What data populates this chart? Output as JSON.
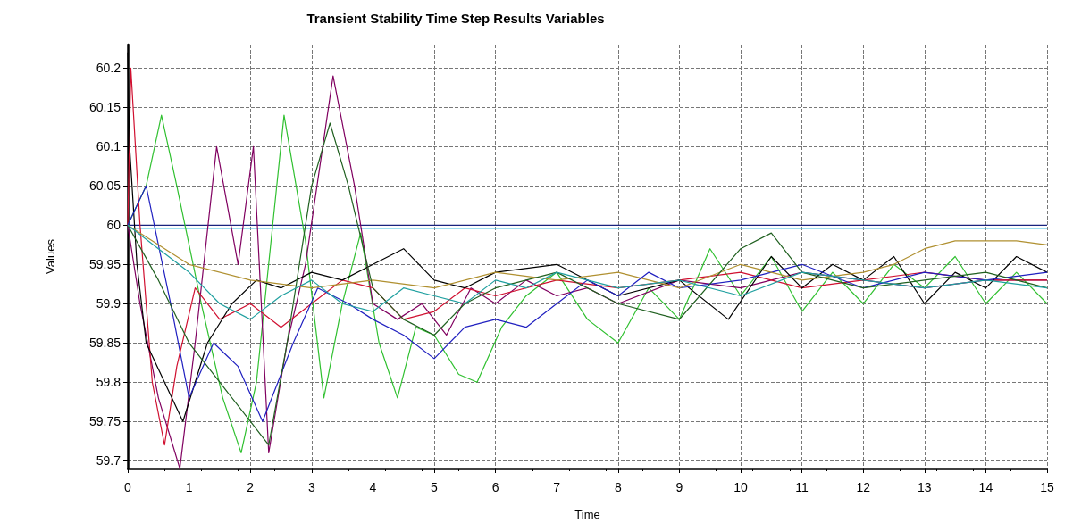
{
  "chart_data": {
    "type": "line",
    "title": "Transient Stability Time Step Results Variables",
    "xlabel": "Time",
    "ylabel": "Values",
    "xlim": [
      0,
      15
    ],
    "xticks": [
      0,
      1,
      2,
      3,
      4,
      5,
      6,
      7,
      8,
      9,
      10,
      11,
      12,
      13,
      14,
      15
    ],
    "ylim": [
      59.69,
      60.23
    ],
    "yticks": [
      59.7,
      59.75,
      59.8,
      59.85,
      59.9,
      59.95,
      60,
      60.05,
      60.1,
      60.15,
      60.2
    ],
    "grid": true,
    "marker": "none",
    "line_style": "solid",
    "series": [
      {
        "color": "#1a237e",
        "x": [
          0,
          15
        ],
        "values": [
          60,
          60
        ]
      },
      {
        "color": "#40c0e0",
        "x": [
          0,
          15
        ],
        "values": [
          59.996,
          59.996
        ]
      },
      {
        "color": "#30c030",
        "x": [
          0,
          0.3,
          0.55,
          0.8,
          1.2,
          1.55,
          1.85,
          2.1,
          2.55,
          2.9,
          3.2,
          3.5,
          3.8,
          4.1,
          4.4,
          4.7,
          5,
          5.4,
          5.7,
          6.1,
          6.5,
          7,
          7.5,
          8,
          8.5,
          9,
          9.5,
          10,
          10.5,
          11,
          11.5,
          12,
          12.5,
          13,
          13.5,
          14,
          14.5,
          15
        ],
        "values": [
          60,
          60.05,
          60.14,
          60.05,
          59.9,
          59.78,
          59.71,
          59.8,
          60.14,
          59.98,
          59.78,
          59.9,
          59.99,
          59.85,
          59.78,
          59.87,
          59.86,
          59.81,
          59.8,
          59.87,
          59.91,
          59.94,
          59.88,
          59.85,
          59.92,
          59.88,
          59.97,
          59.91,
          59.96,
          59.89,
          59.94,
          59.9,
          59.95,
          59.92,
          59.96,
          59.9,
          59.94,
          59.9
        ]
      },
      {
        "color": "#800060",
        "x": [
          0,
          0.2,
          0.5,
          0.85,
          1.1,
          1.45,
          1.8,
          2.05,
          2.3,
          2.6,
          2.9,
          3.35,
          3.7,
          4,
          4.4,
          4.8,
          5.2,
          5.6,
          6,
          6.5,
          7,
          7.5,
          8,
          9,
          10,
          11,
          12,
          13,
          14,
          15
        ],
        "values": [
          60,
          59.9,
          59.78,
          59.69,
          59.85,
          60.1,
          59.95,
          60.1,
          59.71,
          59.85,
          59.95,
          60.19,
          60.05,
          59.9,
          59.88,
          59.9,
          59.86,
          59.92,
          59.9,
          59.93,
          59.91,
          59.92,
          59.9,
          59.93,
          59.92,
          59.94,
          59.93,
          59.92,
          59.93,
          59.93
        ]
      },
      {
        "color": "#d01030",
        "x": [
          0,
          0.05,
          0.2,
          0.4,
          0.6,
          0.8,
          1.1,
          1.5,
          2,
          2.5,
          3,
          3.5,
          4,
          4.5,
          5,
          5.5,
          6,
          7,
          8,
          9,
          10,
          11,
          12,
          13,
          14,
          15
        ],
        "values": [
          60,
          60.2,
          60,
          59.8,
          59.72,
          59.82,
          59.92,
          59.88,
          59.9,
          59.87,
          59.9,
          59.93,
          59.92,
          59.88,
          59.89,
          59.92,
          59.91,
          59.93,
          59.92,
          59.93,
          59.94,
          59.92,
          59.93,
          59.94,
          59.93,
          59.93
        ]
      },
      {
        "color": "#000000",
        "x": [
          0,
          0.03,
          0.15,
          0.3,
          0.6,
          0.9,
          1.3,
          1.7,
          2.1,
          2.5,
          3,
          3.5,
          4,
          4.5,
          5,
          5.5,
          6,
          7,
          8,
          9,
          9.8,
          10.5,
          11,
          11.5,
          12,
          12.5,
          13,
          13.5,
          14,
          14.5,
          15
        ],
        "values": [
          60.22,
          60.1,
          59.95,
          59.85,
          59.8,
          59.75,
          59.85,
          59.9,
          59.93,
          59.92,
          59.94,
          59.93,
          59.95,
          59.97,
          59.93,
          59.92,
          59.94,
          59.95,
          59.91,
          59.93,
          59.88,
          59.96,
          59.92,
          59.95,
          59.93,
          59.96,
          59.9,
          59.94,
          59.92,
          59.96,
          59.94
        ]
      },
      {
        "color": "#2020c0",
        "x": [
          0,
          0.3,
          0.7,
          1,
          1.4,
          1.8,
          2.2,
          2.7,
          3.1,
          3.6,
          4,
          4.5,
          5,
          5.5,
          6,
          6.5,
          7,
          7.5,
          8,
          8.5,
          9,
          10,
          11,
          12,
          13,
          14,
          15
        ],
        "values": [
          60,
          60.05,
          59.9,
          59.78,
          59.85,
          59.82,
          59.75,
          59.85,
          59.92,
          59.9,
          59.88,
          59.86,
          59.83,
          59.87,
          59.88,
          59.87,
          59.9,
          59.93,
          59.91,
          59.94,
          59.92,
          59.93,
          59.95,
          59.92,
          59.94,
          59.93,
          59.94
        ]
      },
      {
        "color": "#b09030",
        "x": [
          0,
          1,
          2,
          3,
          4,
          5,
          6,
          7,
          8,
          9,
          10,
          11,
          12,
          12.5,
          13,
          13.5,
          14,
          14.5,
          15
        ],
        "values": [
          60,
          59.95,
          59.93,
          59.92,
          59.93,
          59.92,
          59.94,
          59.93,
          59.94,
          59.92,
          59.95,
          59.93,
          59.94,
          59.95,
          59.97,
          59.98,
          59.98,
          59.98,
          59.975
        ]
      },
      {
        "color": "#206020",
        "x": [
          0,
          0.5,
          1,
          1.5,
          2,
          2.3,
          2.6,
          3,
          3.3,
          3.6,
          4,
          4.5,
          5,
          5.5,
          6,
          7,
          8,
          9,
          10,
          10.5,
          11,
          12,
          13,
          14,
          15
        ],
        "values": [
          60,
          59.93,
          59.85,
          59.8,
          59.75,
          59.72,
          59.85,
          60.05,
          60.13,
          60.05,
          59.92,
          59.88,
          59.86,
          59.9,
          59.92,
          59.94,
          59.9,
          59.88,
          59.97,
          59.99,
          59.94,
          59.92,
          59.93,
          59.94,
          59.92
        ]
      },
      {
        "color": "#20a0a0",
        "x": [
          0,
          0.5,
          1,
          1.5,
          2,
          2.5,
          3,
          3.5,
          4,
          4.5,
          5,
          5.5,
          6,
          6.5,
          7,
          8,
          9,
          10,
          11,
          12,
          13,
          14,
          15
        ],
        "values": [
          60,
          59.97,
          59.94,
          59.9,
          59.88,
          59.91,
          59.93,
          59.9,
          59.89,
          59.92,
          59.91,
          59.9,
          59.93,
          59.92,
          59.94,
          59.92,
          59.93,
          59.91,
          59.94,
          59.93,
          59.92,
          59.93,
          59.92
        ]
      }
    ]
  }
}
